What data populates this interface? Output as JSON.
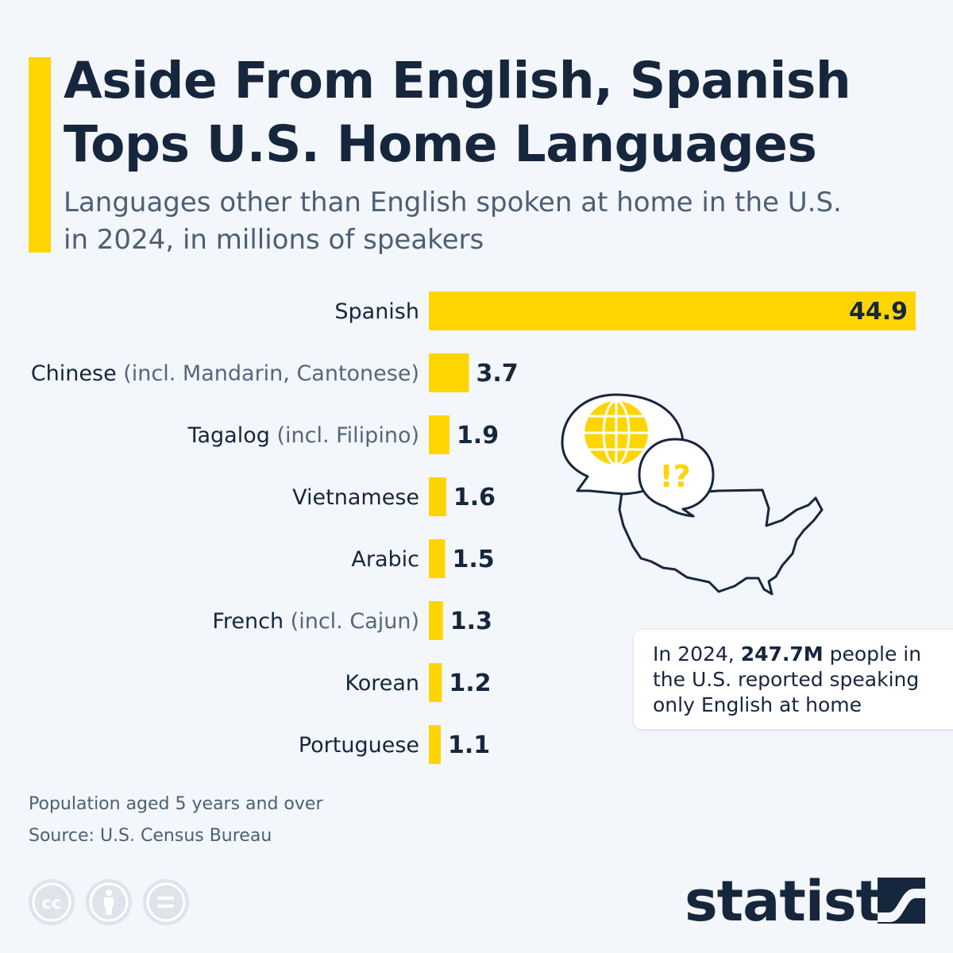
{
  "header": {
    "title_line1": "Aside From English, Spanish",
    "title_line2": "Tops U.S. Home Languages",
    "subtitle_line1": "Languages other than English spoken at home in the U.S.",
    "subtitle_line2": "in 2024, in millions of speakers"
  },
  "chart_data": {
    "type": "bar",
    "orientation": "horizontal",
    "title": "Aside From English, Spanish Tops U.S. Home Languages",
    "subtitle": "Languages other than English spoken at home in the U.S. in 2024, in millions of speakers",
    "categories": [
      {
        "name": "Spanish",
        "note": ""
      },
      {
        "name": "Chinese",
        "note": "(incl. Mandarin, Cantonese)"
      },
      {
        "name": "Tagalog",
        "note": "(incl. Filipino)"
      },
      {
        "name": "Vietnamese",
        "note": ""
      },
      {
        "name": "Arabic",
        "note": ""
      },
      {
        "name": "French",
        "note": "(incl. Cajun)"
      },
      {
        "name": "Korean",
        "note": ""
      },
      {
        "name": "Portuguese",
        "note": ""
      }
    ],
    "values": [
      44.9,
      3.7,
      1.9,
      1.6,
      1.5,
      1.3,
      1.2,
      1.1
    ],
    "value_labels": [
      "44.9",
      "3.7",
      "1.9",
      "1.6",
      "1.5",
      "1.3",
      "1.2",
      "1.1"
    ],
    "xlim": [
      0,
      44.9
    ],
    "grid": false,
    "legend": "none",
    "bar_color": "#fed500"
  },
  "callout": {
    "prefix": "In 2024, ",
    "highlight": "247.7M",
    "suffix": " people in the U.S. reported speaking only English at home"
  },
  "footer": {
    "note": "Population aged 5 years and over",
    "source": "Source: U.S. Census Bureau",
    "brand": "statista"
  },
  "icons": [
    "cc-icon",
    "attribution-icon",
    "no-derivatives-icon",
    "globe-speech-bubble-icon",
    "question-speech-bubble-icon",
    "us-map-icon",
    "statista-logo-icon"
  ],
  "colors": {
    "accent": "#fed500",
    "navy": "#16263d",
    "muted": "#4d5f75",
    "background": "#f3f6fa"
  }
}
